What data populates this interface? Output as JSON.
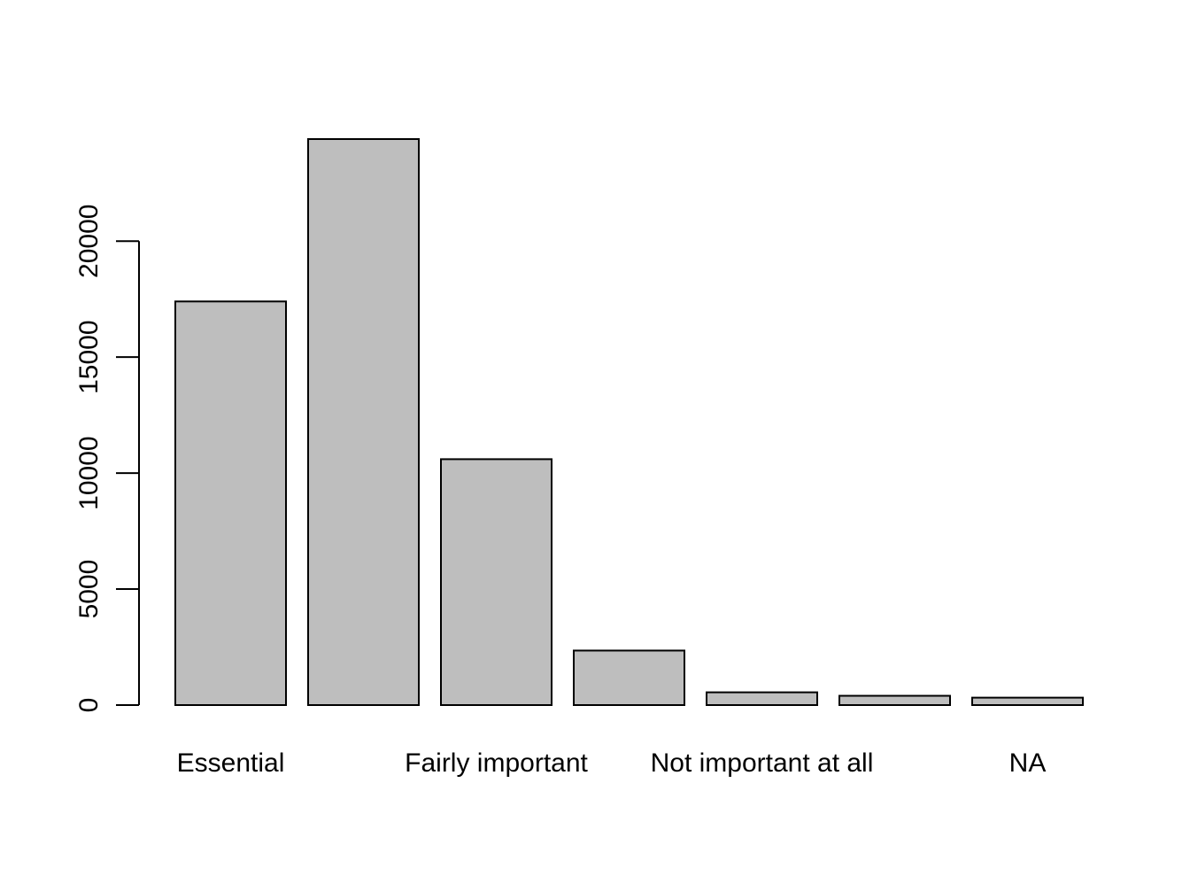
{
  "chart_data": {
    "type": "bar",
    "title": "",
    "xlabel": "",
    "ylabel": "",
    "categories": [
      "Essential",
      "",
      "Fairly important",
      "",
      "Not important at all",
      "",
      "NA"
    ],
    "values": [
      17400,
      24400,
      10600,
      2350,
      550,
      400,
      320
    ],
    "ylim": [
      0,
      24400
    ],
    "y_ticks": [
      0,
      5000,
      10000,
      15000,
      20000
    ],
    "y_tick_labels": [
      "0",
      "5000",
      "10000",
      "15000",
      "20000"
    ],
    "bar_color": "#bebebe",
    "border_color": "#000000",
    "grid": false,
    "legend": "none"
  }
}
